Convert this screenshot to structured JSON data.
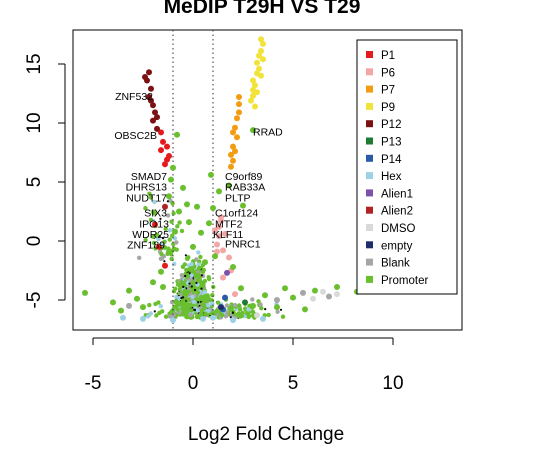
{
  "chart_data": {
    "type": "scatter",
    "title": "MeDIP T29H VS T29",
    "xlabel": "Log2 Fold Change",
    "ylabel": "",
    "xlim": [
      -6,
      13
    ],
    "ylim": [
      -7.5,
      18
    ],
    "x_ticks": [
      -5,
      0,
      5,
      10
    ],
    "y_ticks": [
      -5,
      0,
      5,
      10,
      15
    ],
    "x_tick_labels": [
      "-5",
      "0",
      "5",
      "10"
    ],
    "y_tick_labels": [
      "-5",
      "0",
      "5",
      "10",
      "15"
    ],
    "threshold_lines_x": [
      -1,
      1
    ],
    "legend_position": "top-right",
    "series": [
      {
        "name": "P1",
        "color": "#e41a1c",
        "points": [
          [
            -1.6,
            7.7
          ],
          [
            -1.3,
            6.9
          ],
          [
            -1.5,
            8.4
          ],
          [
            -1.2,
            7.2
          ],
          [
            -1.4,
            6.5
          ],
          [
            -1.6,
            9.2
          ],
          [
            -1.3,
            8.0
          ],
          [
            -1.9,
            1.4
          ],
          [
            -1.4,
            -2.1
          ],
          [
            -1.7,
            -0.5
          ]
        ]
      },
      {
        "name": "P6",
        "color": "#f4a6a6",
        "points": [
          [
            1.4,
            2.0
          ],
          [
            1.6,
            0.6
          ],
          [
            1.5,
            -0.8
          ],
          [
            1.8,
            -1.4
          ],
          [
            1.3,
            1.2
          ],
          [
            1.2,
            -0.3
          ],
          [
            2.1,
            -4.5
          ],
          [
            1.9,
            -2.5
          ],
          [
            1.5,
            -3.1
          ],
          [
            1.4,
            1.7
          ],
          [
            1.3,
            0.4
          ],
          [
            1.2,
            -0.9
          ],
          [
            1.1,
            0.9
          ]
        ]
      },
      {
        "name": "P7",
        "color": "#f39c12",
        "points": [
          [
            2.2,
            10.4
          ],
          [
            2.3,
            10.9
          ],
          [
            2.1,
            9.6
          ],
          [
            2.2,
            8.8
          ],
          [
            2.0,
            8.0
          ],
          [
            1.9,
            7.3
          ],
          [
            2.0,
            6.8
          ],
          [
            1.9,
            6.3
          ],
          [
            2.1,
            7.6
          ],
          [
            2.3,
            11.6
          ],
          [
            2.3,
            12.2
          ],
          [
            2.0,
            9.2
          ]
        ]
      },
      {
        "name": "P9",
        "color": "#f2e33a",
        "points": [
          [
            3.4,
            17.1
          ],
          [
            3.5,
            16.7
          ],
          [
            3.4,
            16.1
          ],
          [
            3.3,
            15.7
          ],
          [
            3.2,
            15.1
          ],
          [
            3.3,
            14.6
          ],
          [
            3.2,
            14.2
          ],
          [
            3.0,
            13.6
          ],
          [
            3.1,
            13.2
          ],
          [
            3.0,
            12.8
          ],
          [
            3.0,
            12.3
          ],
          [
            2.9,
            11.9
          ],
          [
            3.1,
            11.4
          ],
          [
            3.2,
            12.6
          ],
          [
            3.4,
            14.0
          ],
          [
            3.5,
            15.4
          ]
        ]
      },
      {
        "name": "P12",
        "color": "#7b1113",
        "points": [
          [
            -2.2,
            14.3
          ],
          [
            -2.3,
            13.6
          ],
          [
            -2.1,
            12.9
          ],
          [
            -2.2,
            12.2
          ],
          [
            -2.0,
            11.5
          ],
          [
            -1.9,
            10.9
          ],
          [
            -2.0,
            10.2
          ],
          [
            -1.8,
            9.5
          ],
          [
            -2.4,
            13.9
          ],
          [
            -2.1,
            11.9
          ],
          [
            -1.8,
            10.5
          ]
        ]
      },
      {
        "name": "P13",
        "color": "#1e7b34",
        "points": [
          [
            2.6,
            -5.2
          ]
        ]
      },
      {
        "name": "P14",
        "color": "#2a5ba8",
        "points": [
          [
            1.6,
            -4.8
          ],
          [
            1.5,
            -5.8
          ]
        ]
      },
      {
        "name": "Hex",
        "color": "#9ed0e6",
        "points": [
          [
            -2.5,
            -6.6
          ],
          [
            -1.0,
            -6.7
          ],
          [
            0.5,
            -6.6
          ],
          [
            2.0,
            -6.7
          ],
          [
            3.5,
            -6.6
          ],
          [
            -3.5,
            -6.5
          ],
          [
            1.0,
            -6.5
          ]
        ]
      },
      {
        "name": "Alien1",
        "color": "#7b52ab",
        "points": [
          [
            1.7,
            -2.7
          ]
        ]
      },
      {
        "name": "Alien2",
        "color": "#b22222",
        "points": [
          [
            -1.4,
            2.9
          ]
        ]
      },
      {
        "name": "DMSO",
        "color": "#d9d9d9",
        "points": [
          [
            6.5,
            -4.3
          ],
          [
            7.2,
            -4.5
          ],
          [
            6.0,
            -4.9
          ],
          [
            3.2,
            -6.3
          ]
        ]
      },
      {
        "name": "empty",
        "color": "#1f2d6b",
        "points": [
          [
            8.8,
            -2.4
          ],
          [
            1.4,
            -5.6
          ]
        ]
      },
      {
        "name": "Blank",
        "color": "#a6a6a6",
        "points": [
          [
            5.5,
            -4.4
          ],
          [
            6.8,
            -4.7
          ],
          [
            4.2,
            -5.0
          ],
          [
            -3.2,
            -5.5
          ]
        ]
      },
      {
        "name": "Promoter",
        "color": "#6abf2e",
        "points": [
          [
            -5.4,
            -4.4
          ],
          [
            -4.0,
            -5.2
          ],
          [
            -3.2,
            -4.2
          ],
          [
            -2.5,
            -5.6
          ],
          [
            -2.0,
            -3.5
          ],
          [
            -1.6,
            -2.6
          ],
          [
            -1.2,
            -0.9
          ],
          [
            -0.9,
            0.8
          ],
          [
            -0.7,
            2.5
          ],
          [
            -0.5,
            4.5
          ],
          [
            -0.3,
            3.1
          ],
          [
            -0.2,
            1.6
          ],
          [
            0.0,
            -0.5
          ],
          [
            0.2,
            2.9
          ],
          [
            0.4,
            0.7
          ],
          [
            0.6,
            -1.8
          ],
          [
            0.8,
            1.5
          ],
          [
            1.0,
            2.8
          ],
          [
            1.3,
            4.2
          ],
          [
            1.8,
            4.7
          ],
          [
            2.4,
            -4.0
          ],
          [
            3.0,
            -5.5
          ],
          [
            3.6,
            -4.6
          ],
          [
            4.2,
            -5.6
          ],
          [
            5.0,
            -4.8
          ],
          [
            6.1,
            -4.2
          ],
          [
            7.2,
            -3.9
          ],
          [
            8.2,
            -4.3
          ],
          [
            -1.1,
            5.2
          ],
          [
            -1.0,
            6.2
          ],
          [
            -0.8,
            9.0
          ],
          [
            -1.2,
            3.8
          ],
          [
            0.9,
            5.6
          ],
          [
            1.1,
            -1.3
          ],
          [
            -0.1,
            -2.4
          ],
          [
            0.3,
            -3.3
          ],
          [
            -0.4,
            -4.3
          ],
          [
            0.7,
            -4.8
          ],
          [
            -1.5,
            -3.9
          ],
          [
            -2.8,
            -4.9
          ],
          [
            2.0,
            -2.2
          ],
          [
            2.5,
            3.0
          ],
          [
            3.0,
            9.4
          ],
          [
            -3.6,
            -5.9
          ],
          [
            4.6,
            -4.0
          ],
          [
            5.6,
            -5.8
          ]
        ]
      }
    ],
    "annotations": [
      {
        "text": "ZNF532",
        "x": -2.0,
        "y": 12.3,
        "anchor": "end"
      },
      {
        "text": "OBSC2B",
        "x": -1.8,
        "y": 9.0,
        "anchor": "end"
      },
      {
        "text": "RRAD",
        "x": 3.0,
        "y": 9.3,
        "anchor": "start"
      },
      {
        "text": "C9orf89",
        "x": 1.6,
        "y": 5.5,
        "anchor": "start"
      },
      {
        "text": "RAB33A",
        "x": 1.6,
        "y": 4.6,
        "anchor": "start"
      },
      {
        "text": "PLTP",
        "x": 1.6,
        "y": 3.7,
        "anchor": "start"
      },
      {
        "text": "SMAD7",
        "x": -1.3,
        "y": 5.5,
        "anchor": "end"
      },
      {
        "text": "DHRS13",
        "x": -1.3,
        "y": 4.6,
        "anchor": "end"
      },
      {
        "text": "NUDT17",
        "x": -1.3,
        "y": 3.7,
        "anchor": "end"
      },
      {
        "text": "C1orf124",
        "x": 1.1,
        "y": 2.4,
        "anchor": "start"
      },
      {
        "text": "MTF2",
        "x": 1.1,
        "y": 1.5,
        "anchor": "start"
      },
      {
        "text": "KLF11",
        "x": 1.0,
        "y": 0.6,
        "anchor": "start"
      },
      {
        "text": "PNRC1",
        "x": 1.6,
        "y": -0.2,
        "anchor": "start"
      },
      {
        "text": "SIX3",
        "x": -1.3,
        "y": 2.4,
        "anchor": "end"
      },
      {
        "text": "IPO13",
        "x": -1.2,
        "y": 1.5,
        "anchor": "end"
      },
      {
        "text": "WDR25",
        "x": -1.2,
        "y": 0.6,
        "anchor": "end"
      },
      {
        "text": "ZNF189",
        "x": -1.4,
        "y": -0.3,
        "anchor": "end"
      }
    ]
  },
  "legend": {
    "items": [
      {
        "label": "P1",
        "color": "#e41a1c"
      },
      {
        "label": "P6",
        "color": "#f4a6a6"
      },
      {
        "label": "P7",
        "color": "#f39c12"
      },
      {
        "label": "P9",
        "color": "#f2e33a"
      },
      {
        "label": "P12",
        "color": "#7b1113"
      },
      {
        "label": "P13",
        "color": "#1e7b34"
      },
      {
        "label": "P14",
        "color": "#2a5ba8"
      },
      {
        "label": "Hex",
        "color": "#9ed0e6"
      },
      {
        "label": "Alien1",
        "color": "#7b52ab"
      },
      {
        "label": "Alien2",
        "color": "#b22222"
      },
      {
        "label": "DMSO",
        "color": "#d9d9d9"
      },
      {
        "label": "empty",
        "color": "#1f2d6b"
      },
      {
        "label": "Blank",
        "color": "#a6a6a6"
      },
      {
        "label": "Promoter",
        "color": "#6abf2e"
      }
    ]
  }
}
